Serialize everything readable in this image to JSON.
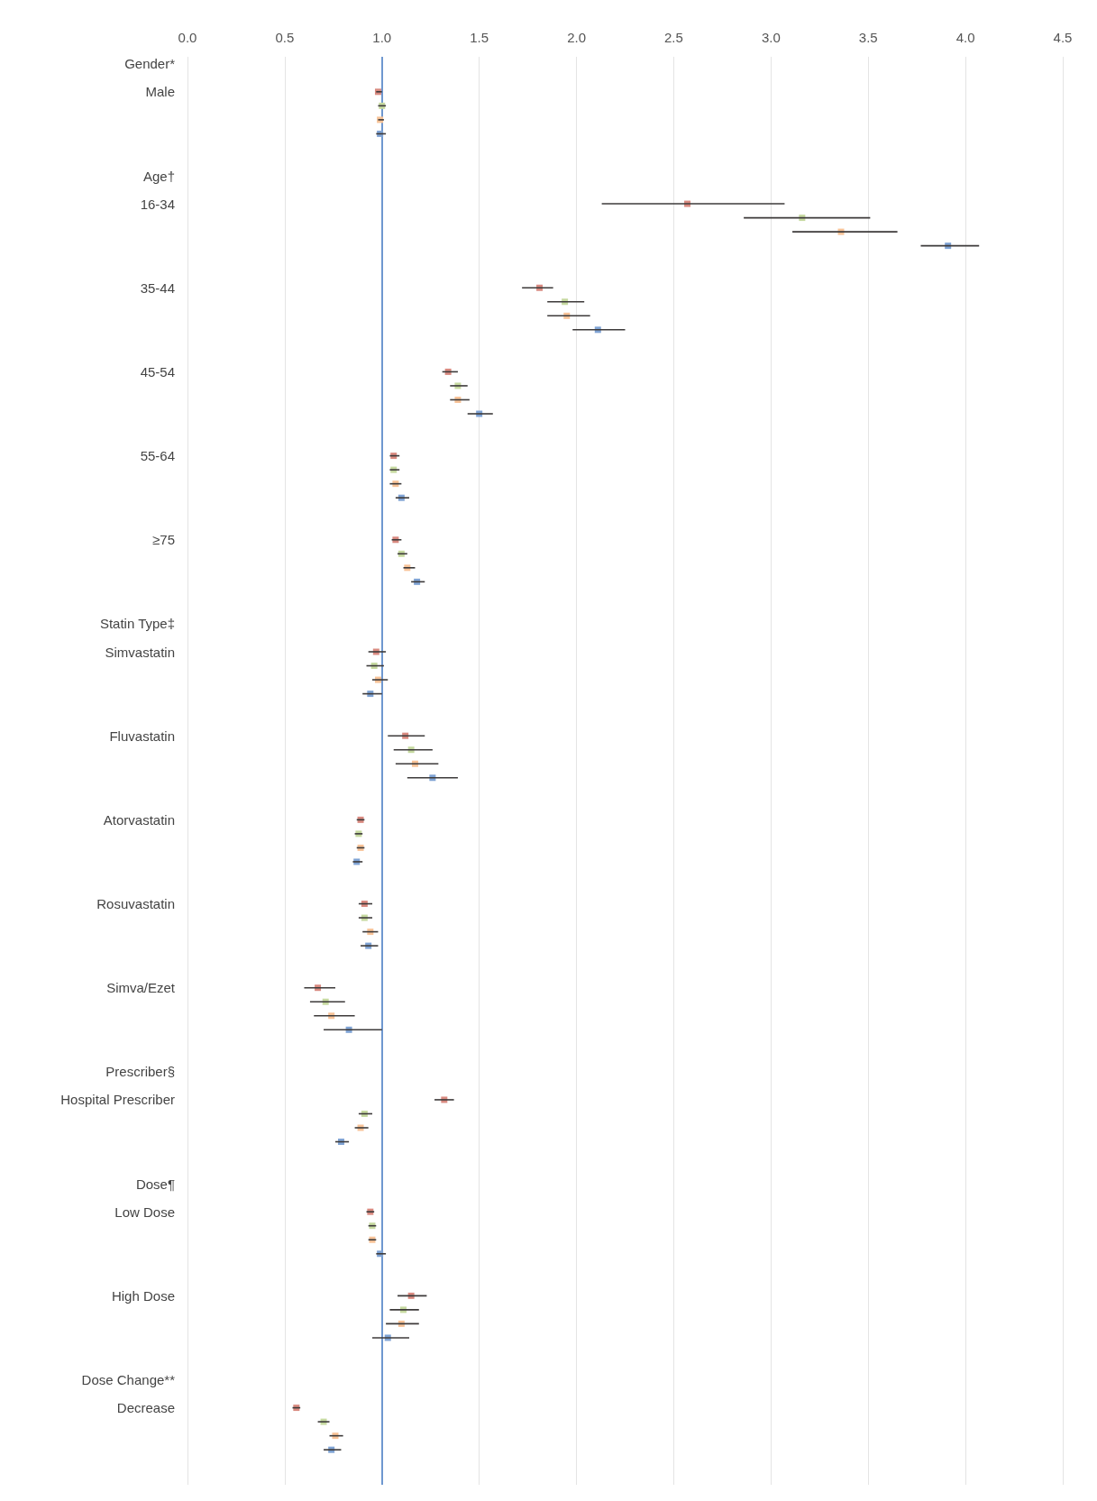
{
  "chart_data": {
    "type": "scatter",
    "orientation": "horizontal",
    "marker": "square",
    "grid": "x",
    "categories": [
      "Gender*",
      null,
      "Male",
      null,
      null,
      null,
      null,
      null,
      "Age†",
      null,
      "16-34",
      null,
      null,
      null,
      null,
      null,
      "35-44",
      null,
      null,
      null,
      null,
      null,
      "45-54",
      null,
      null,
      null,
      null,
      null,
      "55-64",
      null,
      null,
      null,
      null,
      null,
      "≥75",
      null,
      null,
      null,
      null,
      null,
      "Statin Type‡",
      null,
      "Simvastatin",
      null,
      null,
      null,
      null,
      null,
      "Fluvastatin",
      null,
      null,
      null,
      null,
      null,
      "Atorvastatin",
      null,
      null,
      null,
      null,
      null,
      "Rosuvastatin",
      null,
      null,
      null,
      null,
      null,
      "Simva/Ezet",
      null,
      null,
      null,
      null,
      null,
      "Prescriber§",
      null,
      "Hospital Prescriber",
      null,
      null,
      null,
      null,
      null,
      "Dose¶",
      null,
      "Low Dose",
      null,
      null,
      null,
      null,
      null,
      "High Dose",
      null,
      null,
      null,
      null,
      null,
      "Dose Change**",
      null,
      "Decrease",
      null,
      null,
      null,
      null,
      null
    ],
    "xlim": [
      0,
      4.5
    ],
    "xticks": [
      {
        "value": 0,
        "label": "0.0"
      },
      0.5,
      {
        "value": 1,
        "label": "1.0"
      },
      1.5,
      {
        "value": 2,
        "label": "2.0"
      },
      2.5,
      {
        "value": 3,
        "label": "3.0"
      },
      3.5,
      {
        "value": 4,
        "label": "4.0"
      },
      4.5
    ],
    "ref_lines": [
      {
        "axis": "x",
        "value": 1,
        "color": "#6f98d0"
      }
    ],
    "series": [
      {
        "color": "#d98a80",
        "values": [
          null,
          null,
          0.98,
          null,
          null,
          null,
          null,
          null,
          null,
          null,
          2.57,
          null,
          null,
          null,
          null,
          null,
          1.81,
          null,
          null,
          null,
          null,
          null,
          1.34,
          null,
          null,
          null,
          null,
          null,
          1.06,
          null,
          null,
          null,
          null,
          null,
          1.07,
          null,
          null,
          null,
          null,
          null,
          null,
          null,
          0.97,
          null,
          null,
          null,
          null,
          null,
          1.12,
          null,
          null,
          null,
          null,
          null,
          0.89,
          null,
          null,
          null,
          null,
          null,
          0.91,
          null,
          null,
          null,
          null,
          null,
          0.67,
          null,
          null,
          null,
          null,
          null,
          null,
          null,
          1.32,
          null,
          null,
          null,
          null,
          null,
          null,
          null,
          0.94,
          null,
          null,
          null,
          null,
          null,
          1.15,
          null,
          null,
          null,
          null,
          null,
          null,
          null,
          0.56,
          null,
          null,
          null,
          null,
          null
        ],
        "errors": [
          null,
          null,
          [
            0.97,
            1.0
          ],
          null,
          null,
          null,
          null,
          null,
          null,
          null,
          [
            2.13,
            3.07
          ],
          null,
          null,
          null,
          null,
          null,
          [
            1.72,
            1.88
          ],
          null,
          null,
          null,
          null,
          null,
          [
            1.31,
            1.39
          ],
          null,
          null,
          null,
          null,
          null,
          [
            1.04,
            1.09
          ],
          null,
          null,
          null,
          null,
          null,
          [
            1.05,
            1.1
          ],
          null,
          null,
          null,
          null,
          null,
          null,
          null,
          [
            0.93,
            1.02
          ],
          null,
          null,
          null,
          null,
          null,
          [
            1.03,
            1.22
          ],
          null,
          null,
          null,
          null,
          null,
          [
            0.87,
            0.91
          ],
          null,
          null,
          null,
          null,
          null,
          [
            0.88,
            0.95
          ],
          null,
          null,
          null,
          null,
          null,
          [
            0.6,
            0.76
          ],
          null,
          null,
          null,
          null,
          null,
          null,
          null,
          [
            1.27,
            1.37
          ],
          null,
          null,
          null,
          null,
          null,
          null,
          null,
          [
            0.92,
            0.96
          ],
          null,
          null,
          null,
          null,
          null,
          [
            1.08,
            1.23
          ],
          null,
          null,
          null,
          null,
          null,
          null,
          null,
          [
            0.54,
            0.58
          ],
          null,
          null,
          null,
          null,
          null
        ]
      },
      {
        "color": "#c6d9a0",
        "values": [
          null,
          null,
          null,
          1.0,
          null,
          null,
          null,
          null,
          null,
          null,
          null,
          3.16,
          null,
          null,
          null,
          null,
          null,
          1.94,
          null,
          null,
          null,
          null,
          null,
          1.39,
          null,
          null,
          null,
          null,
          null,
          1.06,
          null,
          null,
          null,
          null,
          null,
          1.1,
          null,
          null,
          null,
          null,
          null,
          null,
          null,
          0.96,
          null,
          null,
          null,
          null,
          null,
          1.15,
          null,
          null,
          null,
          null,
          null,
          0.88,
          null,
          null,
          null,
          null,
          null,
          0.91,
          null,
          null,
          null,
          null,
          null,
          0.71,
          null,
          null,
          null,
          null,
          null,
          null,
          null,
          0.91,
          null,
          null,
          null,
          null,
          null,
          null,
          null,
          0.95,
          null,
          null,
          null,
          null,
          null,
          1.11,
          null,
          null,
          null,
          null,
          null,
          null,
          null,
          0.7,
          null,
          null,
          null,
          null
        ],
        "errors": [
          null,
          null,
          null,
          [
            0.98,
            1.02
          ],
          null,
          null,
          null,
          null,
          null,
          null,
          null,
          [
            2.86,
            3.51
          ],
          null,
          null,
          null,
          null,
          null,
          [
            1.85,
            2.04
          ],
          null,
          null,
          null,
          null,
          null,
          [
            1.35,
            1.44
          ],
          null,
          null,
          null,
          null,
          null,
          [
            1.04,
            1.09
          ],
          null,
          null,
          null,
          null,
          null,
          [
            1.08,
            1.13
          ],
          null,
          null,
          null,
          null,
          null,
          null,
          null,
          [
            0.92,
            1.01
          ],
          null,
          null,
          null,
          null,
          null,
          [
            1.06,
            1.26
          ],
          null,
          null,
          null,
          null,
          null,
          [
            0.86,
            0.9
          ],
          null,
          null,
          null,
          null,
          null,
          [
            0.88,
            0.95
          ],
          null,
          null,
          null,
          null,
          null,
          [
            0.63,
            0.81
          ],
          null,
          null,
          null,
          null,
          null,
          null,
          null,
          [
            0.88,
            0.95
          ],
          null,
          null,
          null,
          null,
          null,
          null,
          null,
          [
            0.93,
            0.97
          ],
          null,
          null,
          null,
          null,
          null,
          [
            1.04,
            1.19
          ],
          null,
          null,
          null,
          null,
          null,
          null,
          null,
          [
            0.67,
            0.73
          ],
          null,
          null,
          null,
          null
        ]
      },
      {
        "color": "#f8c398",
        "values": [
          null,
          null,
          null,
          null,
          0.99,
          null,
          null,
          null,
          null,
          null,
          null,
          null,
          3.36,
          null,
          null,
          null,
          null,
          null,
          1.95,
          null,
          null,
          null,
          null,
          null,
          1.39,
          null,
          null,
          null,
          null,
          null,
          1.07,
          null,
          null,
          null,
          null,
          null,
          1.13,
          null,
          null,
          null,
          null,
          null,
          null,
          null,
          0.98,
          null,
          null,
          null,
          null,
          null,
          1.17,
          null,
          null,
          null,
          null,
          null,
          0.89,
          null,
          null,
          null,
          null,
          null,
          0.94,
          null,
          null,
          null,
          null,
          null,
          0.74,
          null,
          null,
          null,
          null,
          null,
          null,
          null,
          0.89,
          null,
          null,
          null,
          null,
          null,
          null,
          null,
          0.95,
          null,
          null,
          null,
          null,
          null,
          1.1,
          null,
          null,
          null,
          null,
          null,
          null,
          null,
          0.76,
          null,
          null,
          null
        ],
        "errors": [
          null,
          null,
          null,
          null,
          [
            0.98,
            1.01
          ],
          null,
          null,
          null,
          null,
          null,
          null,
          null,
          [
            3.11,
            3.65
          ],
          null,
          null,
          null,
          null,
          null,
          [
            1.85,
            2.07
          ],
          null,
          null,
          null,
          null,
          null,
          [
            1.35,
            1.45
          ],
          null,
          null,
          null,
          null,
          null,
          [
            1.04,
            1.1
          ],
          null,
          null,
          null,
          null,
          null,
          [
            1.11,
            1.17
          ],
          null,
          null,
          null,
          null,
          null,
          null,
          null,
          [
            0.95,
            1.03
          ],
          null,
          null,
          null,
          null,
          null,
          [
            1.07,
            1.29
          ],
          null,
          null,
          null,
          null,
          null,
          [
            0.87,
            0.91
          ],
          null,
          null,
          null,
          null,
          null,
          [
            0.9,
            0.98
          ],
          null,
          null,
          null,
          null,
          null,
          [
            0.65,
            0.86
          ],
          null,
          null,
          null,
          null,
          null,
          null,
          null,
          [
            0.86,
            0.93
          ],
          null,
          null,
          null,
          null,
          null,
          null,
          null,
          [
            0.93,
            0.97
          ],
          null,
          null,
          null,
          null,
          null,
          [
            1.02,
            1.19
          ],
          null,
          null,
          null,
          null,
          null,
          null,
          null,
          [
            0.73,
            0.8
          ],
          null,
          null,
          null
        ]
      },
      {
        "color": "#7fa3d4",
        "values": [
          null,
          null,
          null,
          null,
          null,
          0.99,
          null,
          null,
          null,
          null,
          null,
          null,
          null,
          3.91,
          null,
          null,
          null,
          null,
          null,
          2.11,
          null,
          null,
          null,
          null,
          null,
          1.5,
          null,
          null,
          null,
          null,
          null,
          1.1,
          null,
          null,
          null,
          null,
          null,
          1.18,
          null,
          null,
          null,
          null,
          null,
          null,
          null,
          0.94,
          null,
          null,
          null,
          null,
          null,
          1.26,
          null,
          null,
          null,
          null,
          null,
          0.87,
          null,
          null,
          null,
          null,
          null,
          0.93,
          null,
          null,
          null,
          null,
          null,
          0.83,
          null,
          null,
          null,
          null,
          null,
          null,
          null,
          0.79,
          null,
          null,
          null,
          null,
          null,
          null,
          null,
          0.99,
          null,
          null,
          null,
          null,
          null,
          1.03,
          null,
          null,
          null,
          null,
          null,
          null,
          null,
          0.74,
          null,
          null
        ],
        "errors": [
          null,
          null,
          null,
          null,
          null,
          [
            0.97,
            1.02
          ],
          null,
          null,
          null,
          null,
          null,
          null,
          null,
          [
            3.77,
            4.07
          ],
          null,
          null,
          null,
          null,
          null,
          [
            1.98,
            2.25
          ],
          null,
          null,
          null,
          null,
          null,
          [
            1.44,
            1.57
          ],
          null,
          null,
          null,
          null,
          null,
          [
            1.07,
            1.14
          ],
          null,
          null,
          null,
          null,
          null,
          [
            1.15,
            1.22
          ],
          null,
          null,
          null,
          null,
          null,
          null,
          null,
          [
            0.9,
            1.0
          ],
          null,
          null,
          null,
          null,
          null,
          [
            1.13,
            1.39
          ],
          null,
          null,
          null,
          null,
          null,
          [
            0.85,
            0.9
          ],
          null,
          null,
          null,
          null,
          null,
          [
            0.89,
            0.98
          ],
          null,
          null,
          null,
          null,
          null,
          [
            0.7,
            1.0
          ],
          null,
          null,
          null,
          null,
          null,
          null,
          null,
          [
            0.76,
            0.83
          ],
          null,
          null,
          null,
          null,
          null,
          null,
          null,
          [
            0.97,
            1.02
          ],
          null,
          null,
          null,
          null,
          null,
          [
            0.95,
            1.14
          ],
          null,
          null,
          null,
          null,
          null,
          null,
          null,
          [
            0.7,
            0.79
          ],
          null,
          null
        ]
      }
    ]
  }
}
